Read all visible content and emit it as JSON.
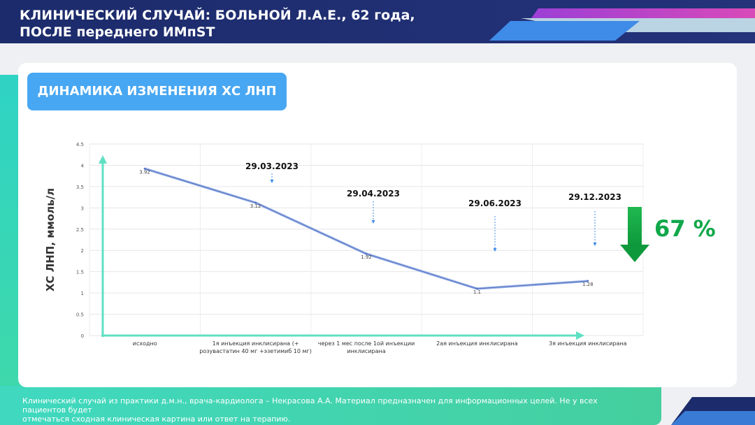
{
  "header": {
    "title_line1": "КЛИНИЧЕСКИЙ СЛУЧАЙ: БОЛЬНОЙ Л.А.Е., 62 года,",
    "title_line2": "ПОСЛЕ переднего ИМпST"
  },
  "section_title": "ДИНАМИКА ИЗМЕНЕНИЯ ХС ЛНП",
  "reduction": {
    "label": "67 %",
    "arrow_color": "#11a84a"
  },
  "footer": {
    "line1": "Клинический случай из практики д.м.н., врача-кардиолога –  Некрасова  А.А. Материал предназначен для информационных целей. Не у всех пациентов будет",
    "line2": "отмечаться сходная клиническая картина или ответ на терапию."
  },
  "colors": {
    "navy": "#1c2b6b",
    "accent_blue": "#48a7f2",
    "teal": "#3fd8bd",
    "line": "#6b87c9"
  },
  "chart_data": {
    "type": "line",
    "ylabel": "ХС ЛНП, ммоль/л",
    "ylim": [
      0,
      4.5
    ],
    "yticks": [
      "0",
      "0.5",
      "1",
      "1.5",
      "2",
      "2.5",
      "3",
      "3.5",
      "4",
      "4.5"
    ],
    "categories": [
      [
        "исходно"
      ],
      [
        "1я инъекция инклисирана (+",
        "розувастатин 40 мг +эзетимиб 10 мг)"
      ],
      [
        "через 1 мес после 1ой инъекции",
        "инклисирана"
      ],
      [
        "2ая инъекция инклисирана"
      ],
      [
        "3я инъекция инклисирана"
      ]
    ],
    "values": [
      3.92,
      3.12,
      1.92,
      1.1,
      1.28
    ],
    "value_labels": [
      "3.92",
      "3.12",
      "1.92",
      "1.1",
      "1.28"
    ],
    "dates": [
      "29.03.2023",
      "29.04.2023",
      "29.06.2023",
      "29.12.2023"
    ]
  }
}
